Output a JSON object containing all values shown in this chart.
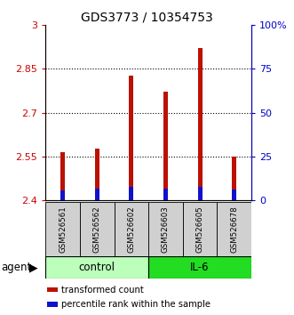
{
  "title": "GDS3773 / 10354753",
  "categories": [
    "GSM526561",
    "GSM526562",
    "GSM526602",
    "GSM526603",
    "GSM526605",
    "GSM526678"
  ],
  "transformed_counts": [
    2.565,
    2.578,
    2.828,
    2.773,
    2.922,
    2.548
  ],
  "percentile_ranks": [
    0.055,
    0.065,
    0.075,
    0.065,
    0.075,
    0.06
  ],
  "ymin": 2.4,
  "ymax": 3.0,
  "yticks": [
    2.4,
    2.55,
    2.7,
    2.85,
    3.0
  ],
  "ytick_labels": [
    "2.4",
    "2.55",
    "2.7",
    "2.85",
    "3"
  ],
  "right_yticks": [
    0.0,
    0.25,
    0.5,
    0.75,
    1.0
  ],
  "right_ytick_labels": [
    "0",
    "25",
    "50",
    "75",
    "100%"
  ],
  "bar_color_red": "#bb1100",
  "bar_color_blue": "#1111cc",
  "bar_width": 0.13,
  "blue_bar_width": 0.13,
  "agent_groups": [
    {
      "label": "control",
      "start": 0,
      "end": 3,
      "color": "#bbffbb"
    },
    {
      "label": "IL-6",
      "start": 3,
      "end": 6,
      "color": "#22dd22"
    }
  ],
  "agent_label": "agent",
  "legend_items": [
    {
      "label": "transformed count",
      "color": "#bb1100"
    },
    {
      "label": "percentile rank within the sample",
      "color": "#1111cc"
    }
  ],
  "title_fontsize": 10,
  "tick_fontsize": 8,
  "label_fontsize": 8.5,
  "left_axis_color": "#cc0000",
  "right_axis_color": "#0000cc",
  "grid_lines": [
    2.55,
    2.7,
    2.85
  ],
  "fig_width": 3.31,
  "fig_height": 3.54
}
